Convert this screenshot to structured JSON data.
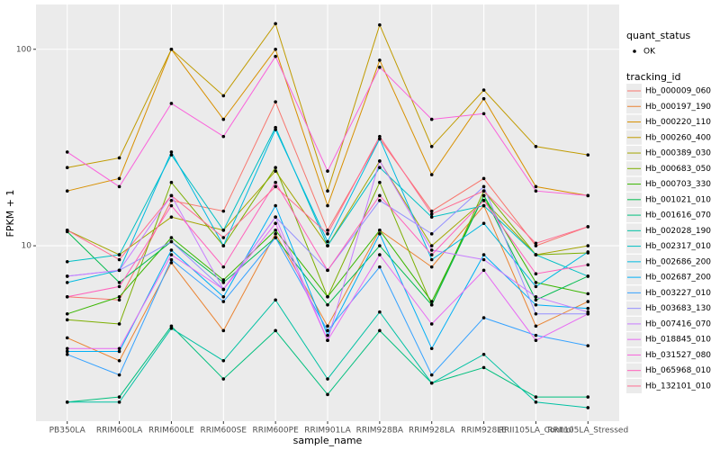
{
  "chart_data": {
    "type": "line",
    "x_label": "sample_name",
    "y_label": "FPKM + 1",
    "log_y": true,
    "grid": true,
    "categories": [
      "PB350LA",
      "RRIM600LA",
      "RRIM600LE",
      "RRIM600SE",
      "RRIM600PE",
      "RRIM901LA",
      "RRIM928BA",
      "RRIM928LA",
      "RRIM928LE",
      "RRII105LA_Control",
      "RRII105LA_Stressed"
    ],
    "ylim": [
      1.28,
      169
    ],
    "yticks": [
      10,
      100
    ],
    "point_legend": {
      "title": "quant_status",
      "labels": [
        "OK"
      ]
    },
    "legend_title": "tracking_id",
    "legend_position": "right",
    "series": [
      {
        "name": "Hb_000009_060",
        "color": "#F8766D",
        "values": [
          5.5,
          5.3,
          17,
          15,
          54,
          12,
          35,
          15,
          22,
          10,
          12.5
        ]
      },
      {
        "name": "Hb_000197_190",
        "color": "#EA8331",
        "values": [
          3.4,
          2.6,
          8.2,
          3.7,
          11.5,
          3.9,
          12,
          7.8,
          16,
          3.9,
          5.2
        ]
      },
      {
        "name": "Hb_000220_110",
        "color": "#D89000",
        "values": [
          19,
          22,
          100,
          44,
          100,
          16,
          88,
          23,
          56,
          20,
          18
        ]
      },
      {
        "name": "Hb_000260_400",
        "color": "#C09B00",
        "values": [
          25,
          28,
          100,
          58,
          135,
          19,
          133,
          32,
          62,
          32,
          29
        ]
      },
      {
        "name": "Hb_000389_030",
        "color": "#A3A500",
        "values": [
          12,
          9,
          14,
          12,
          24,
          10,
          27,
          10,
          17,
          9,
          10
        ]
      },
      {
        "name": "Hb_000683_050",
        "color": "#7CAE00",
        "values": [
          4.2,
          4.0,
          21,
          10,
          25,
          5.5,
          21,
          5.0,
          19,
          9,
          9.2
        ]
      },
      {
        "name": "Hb_000703_330",
        "color": "#39B600",
        "values": [
          4.5,
          5.5,
          11,
          6.7,
          12,
          5.5,
          12,
          5.2,
          18,
          6.5,
          5.7
        ]
      },
      {
        "name": "Hb_001021_010",
        "color": "#00BB4E",
        "values": [
          11.8,
          6.5,
          10.5,
          6.5,
          11,
          5.0,
          10,
          5.0,
          18,
          5.3,
          7.0
        ]
      },
      {
        "name": "Hb_001616_070",
        "color": "#00BF7D",
        "values": [
          1.6,
          1.7,
          3.9,
          2.1,
          3.7,
          1.75,
          3.7,
          2.0,
          2.4,
          1.7,
          1.7
        ]
      },
      {
        "name": "Hb_002028_190",
        "color": "#00C1A3",
        "values": [
          1.6,
          1.6,
          3.8,
          2.6,
          5.3,
          2.1,
          4.6,
          2.0,
          2.8,
          1.6,
          1.5
        ]
      },
      {
        "name": "Hb_002317_010",
        "color": "#00BFC4",
        "values": [
          8.3,
          9,
          29,
          12,
          40,
          10,
          25,
          14,
          16,
          9,
          7.0
        ]
      },
      {
        "name": "Hb_002686_200",
        "color": "#00BAE0",
        "values": [
          6.5,
          7.5,
          30,
          10,
          39,
          10.5,
          35,
          8.5,
          13,
          6.2,
          9.3
        ]
      },
      {
        "name": "Hb_002687_200",
        "color": "#00B0F6",
        "values": [
          2.9,
          2.9,
          9.5,
          5.5,
          16,
          3.5,
          11.5,
          3.0,
          9,
          5.0,
          4.8
        ]
      },
      {
        "name": "Hb_003227_010",
        "color": "#35A2FF",
        "values": [
          2.8,
          2.2,
          8.5,
          5.2,
          11,
          3.7,
          7.8,
          2.2,
          4.3,
          3.5,
          3.1
        ]
      },
      {
        "name": "Hb_003683_130",
        "color": "#9590FF",
        "values": [
          7.0,
          7.5,
          10.5,
          6.0,
          14,
          7.5,
          17,
          11.5,
          20,
          4.5,
          4.5
        ]
      },
      {
        "name": "Hb_007416_070",
        "color": "#C77CFF",
        "values": [
          7.0,
          7.5,
          18,
          6.0,
          14,
          3.3,
          27,
          9.5,
          8.5,
          5.5,
          4.6
        ]
      },
      {
        "name": "Hb_018845_010",
        "color": "#E76BF3",
        "values": [
          3.0,
          3.0,
          9.0,
          6.0,
          13,
          3.3,
          9,
          4.0,
          7.5,
          3.3,
          4.5
        ]
      },
      {
        "name": "Hb_031527_080",
        "color": "#FA62DB",
        "values": [
          30,
          20,
          53,
          36,
          92,
          24,
          81,
          44,
          47,
          19,
          18
        ]
      },
      {
        "name": "Hb_065968_010",
        "color": "#FF62BC",
        "values": [
          5.5,
          6.2,
          16,
          7.8,
          21,
          7.5,
          18,
          9.0,
          17,
          7.2,
          8.0
        ]
      },
      {
        "name": "Hb_132101_010",
        "color": "#FF6C91",
        "values": [
          12,
          8.5,
          18,
          11,
          20,
          11.5,
          36,
          14.5,
          19,
          10.3,
          12.5
        ]
      }
    ]
  }
}
